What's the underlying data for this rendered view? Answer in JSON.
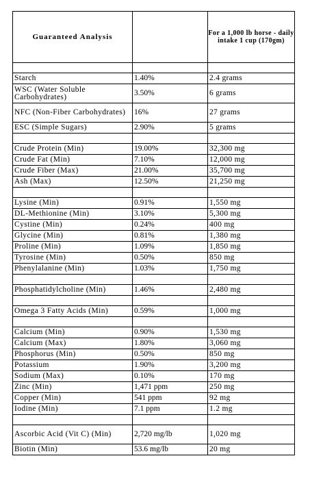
{
  "header": {
    "col1": "Guaranteed Analysis",
    "col2": "",
    "col3": "For a 1,000 lb horse - daily intake 1 cup (170gm)"
  },
  "rows": [
    {
      "type": "spacer"
    },
    {
      "name": "Starch",
      "percent": "1.40%",
      "amount": "2.4 grams"
    },
    {
      "name": "WSC (Water Soluble Carbohydrates)",
      "percent": "3.50%",
      "amount": "6 grams",
      "tall": true
    },
    {
      "name": "NFC (Non-Fiber Carbohydrates)",
      "percent": "16%",
      "amount": "27 grams",
      "tall": true
    },
    {
      "name": "ESC (Simple Sugars)",
      "percent": "2.90%",
      "amount": "5 grams"
    },
    {
      "type": "spacer"
    },
    {
      "name": "Crude Protein (Min)",
      "percent": "19.00%",
      "amount": "32,300 mg"
    },
    {
      "name": "Crude Fat (Min)",
      "percent": "7.10%",
      "amount": "12,000 mg"
    },
    {
      "name": "Crude Fiber (Max)",
      "percent": "21.00%",
      "amount": "35,700 mg"
    },
    {
      "name": "Ash (Max)",
      "percent": "12.50%",
      "amount": "21,250 mg"
    },
    {
      "type": "spacer"
    },
    {
      "name": "Lysine (Min)",
      "percent": "0.91%",
      "amount": "1,550 mg"
    },
    {
      "name": "DL-Methionine (Min)",
      "percent": "3.10%",
      "amount": "5,300 mg"
    },
    {
      "name": "Cystine (Min)",
      "percent": "0.24%",
      "amount": "400 mg"
    },
    {
      "name": "Glycine (Min)",
      "percent": "0.81%",
      "amount": "1,380 mg"
    },
    {
      "name": "Proline (Min)",
      "percent": "1.09%",
      "amount": "1,850 mg"
    },
    {
      "name": "Tyrosine (Min)",
      "percent": "0.50%",
      "amount": "850 mg"
    },
    {
      "name": "Phenylalanine (Min)",
      "percent": "1.03%",
      "amount": "1,750 mg"
    },
    {
      "type": "spacer"
    },
    {
      "name": "Phosphatidylcholine (Min)",
      "percent": "1.46%",
      "amount": "2,480 mg"
    },
    {
      "type": "spacer"
    },
    {
      "name": "Omega 3 Fatty Acids (Min)",
      "percent": "0.59%",
      "amount": "1,000 mg"
    },
    {
      "type": "spacer"
    },
    {
      "name": "Calcium (Min)",
      "percent": "0.90%",
      "amount": "1,530 mg"
    },
    {
      "name": "Calcium (Max)",
      "percent": "1.80%",
      "amount": "3,060 mg"
    },
    {
      "name": "Phosphorus (Min)",
      "percent": "0.50%",
      "amount": "850 mg"
    },
    {
      "name": "Potassium",
      "percent": "1.90%",
      "amount": "3,200 mg"
    },
    {
      "name": "Sodium (Max)",
      "percent": "0.10%",
      "amount": "170 mg"
    },
    {
      "name": "Zinc (Min)",
      "percent": "1,471 ppm",
      "amount": "250 mg"
    },
    {
      "name": "Copper (Min)",
      "percent": "541 ppm",
      "amount": "92 mg"
    },
    {
      "name": "Iodine (Min)",
      "percent": "7.1 ppm",
      "amount": "1.2 mg"
    },
    {
      "type": "spacer"
    },
    {
      "name": "Ascorbic Acid (Vit C) (Min)",
      "percent": "2,720 mg/lb",
      "amount": "1,020 mg",
      "tall": true
    },
    {
      "name": "Biotin (Min)",
      "percent": "53.6 mg/lb",
      "amount": "20 mg"
    }
  ]
}
